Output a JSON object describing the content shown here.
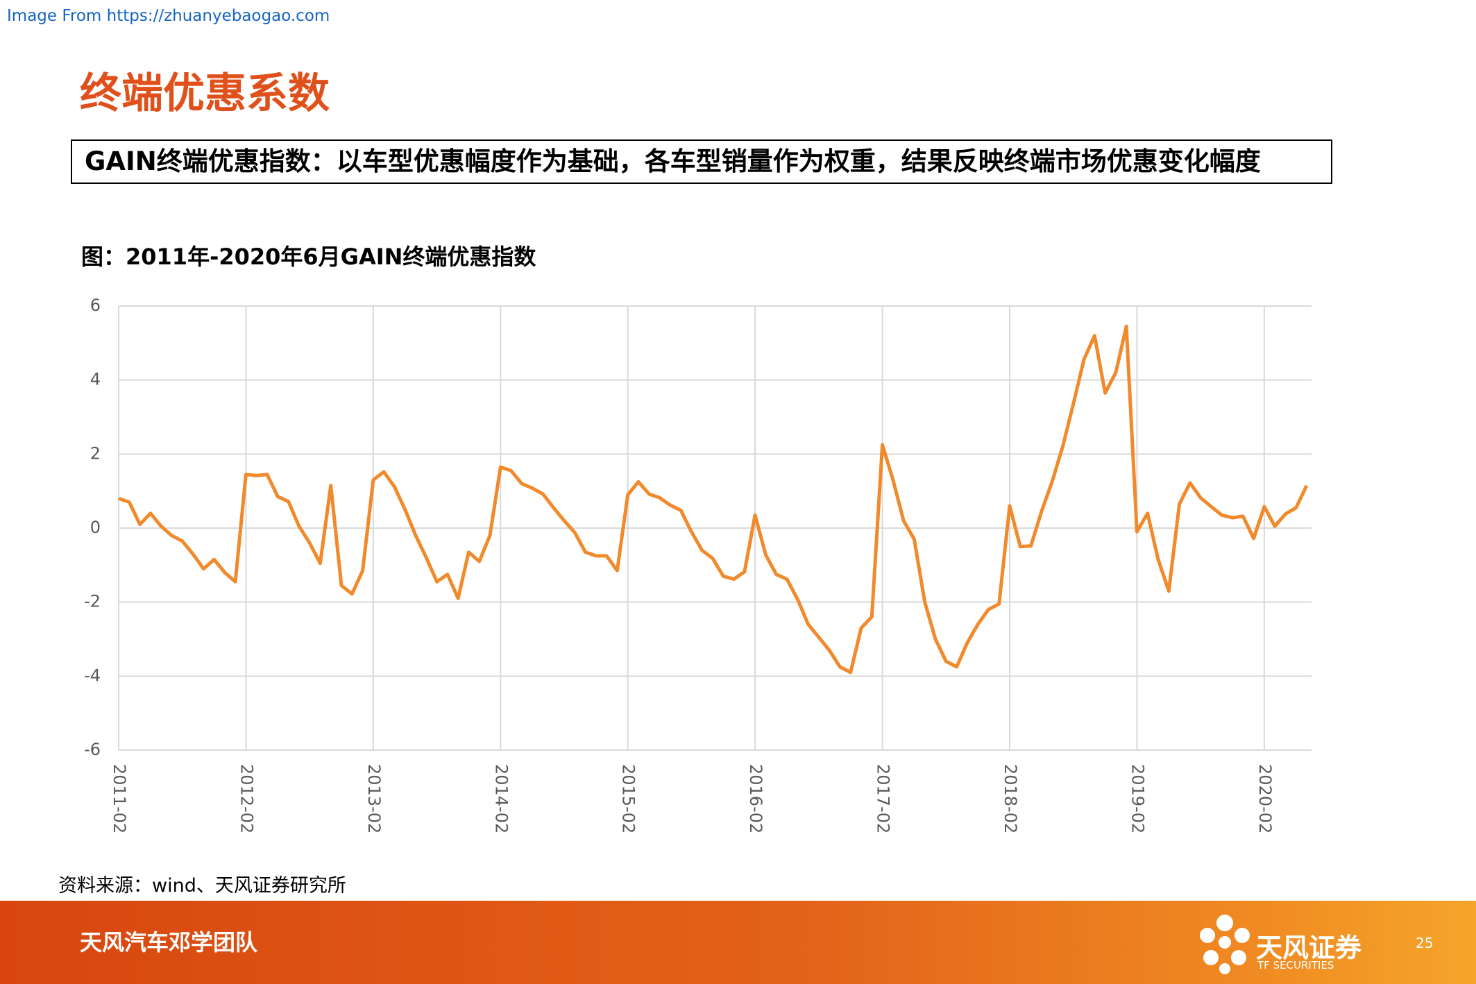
{
  "source_url": "Image From https://zhuanyebaogao.com",
  "page_title": "终端优惠系数",
  "description": "GAIN终端优惠指数：以车型优惠幅度作为基础，各车型销量作为权重，结果反映终端市场优惠变化幅度",
  "source": "资料来源：wind、天风证券研究所",
  "footer": {
    "team": "天风汽车邓学团队",
    "logo_cn": "天风证券",
    "logo_en": "TF SECURITIES",
    "page": 25
  },
  "chart_data": {
    "type": "line",
    "title": "图：2011年-2020年6月GAIN终端优惠指数",
    "categories": [
      "2011-02",
      null,
      null,
      null,
      null,
      null,
      null,
      null,
      null,
      null,
      null,
      null,
      "2012-02",
      null,
      null,
      null,
      null,
      null,
      null,
      null,
      null,
      null,
      null,
      null,
      "2013-02",
      null,
      null,
      null,
      null,
      null,
      null,
      null,
      null,
      null,
      null,
      null,
      "2014-02",
      null,
      null,
      null,
      null,
      null,
      null,
      null,
      null,
      null,
      null,
      null,
      "2015-02",
      null,
      null,
      null,
      null,
      null,
      null,
      null,
      null,
      null,
      null,
      null,
      "2016-02",
      null,
      null,
      null,
      null,
      null,
      null,
      null,
      null,
      null,
      null,
      null,
      "2017-02",
      null,
      null,
      null,
      null,
      null,
      null,
      null,
      null,
      null,
      null,
      null,
      "2018-02",
      null,
      null,
      null,
      null,
      null,
      null,
      null,
      null,
      null,
      null,
      null,
      "2019-02",
      null,
      null,
      null,
      null,
      null,
      null,
      null,
      null,
      null,
      null,
      null,
      "2020-02",
      null,
      null,
      null,
      null
    ],
    "values": [
      0.8,
      0.7,
      0.1,
      0.4,
      0.05,
      -0.2,
      -0.35,
      -0.7,
      -1.1,
      -0.85,
      -1.2,
      -1.45,
      1.45,
      1.42,
      1.45,
      0.85,
      0.72,
      0.05,
      -0.4,
      -0.95,
      1.15,
      -1.55,
      -1.78,
      -1.15,
      1.3,
      1.52,
      1.12,
      0.5,
      -0.2,
      -0.8,
      -1.45,
      -1.25,
      -1.9,
      -0.65,
      -0.9,
      -0.2,
      1.65,
      1.55,
      1.2,
      1.08,
      0.92,
      0.55,
      0.2,
      -0.12,
      -0.65,
      -0.75,
      -0.75,
      -1.15,
      0.9,
      1.25,
      0.92,
      0.82,
      0.62,
      0.48,
      -0.1,
      -0.6,
      -0.82,
      -1.3,
      -1.38,
      -1.18,
      0.35,
      -0.72,
      -1.25,
      -1.38,
      -1.92,
      -2.6,
      -2.95,
      -3.3,
      -3.75,
      -3.9,
      -2.7,
      -2.4,
      2.25,
      1.3,
      0.2,
      -0.3,
      -2.0,
      -3.0,
      -3.6,
      -3.75,
      -3.1,
      -2.6,
      -2.2,
      -2.05,
      0.6,
      -0.5,
      -0.48,
      0.45,
      1.25,
      2.2,
      3.35,
      4.55,
      5.2,
      3.65,
      4.2,
      5.45,
      -0.1,
      0.4,
      -0.85,
      -1.7,
      0.65,
      1.22,
      0.82,
      0.58,
      0.35,
      0.28,
      0.32,
      -0.28,
      0.58,
      0.05,
      0.38,
      0.55,
      1.15
    ],
    "color": "#f08a2c",
    "ylim": [
      -6,
      6
    ],
    "yticks": [
      -6,
      -4,
      -2,
      0,
      2,
      4,
      6
    ],
    "grid": true
  }
}
